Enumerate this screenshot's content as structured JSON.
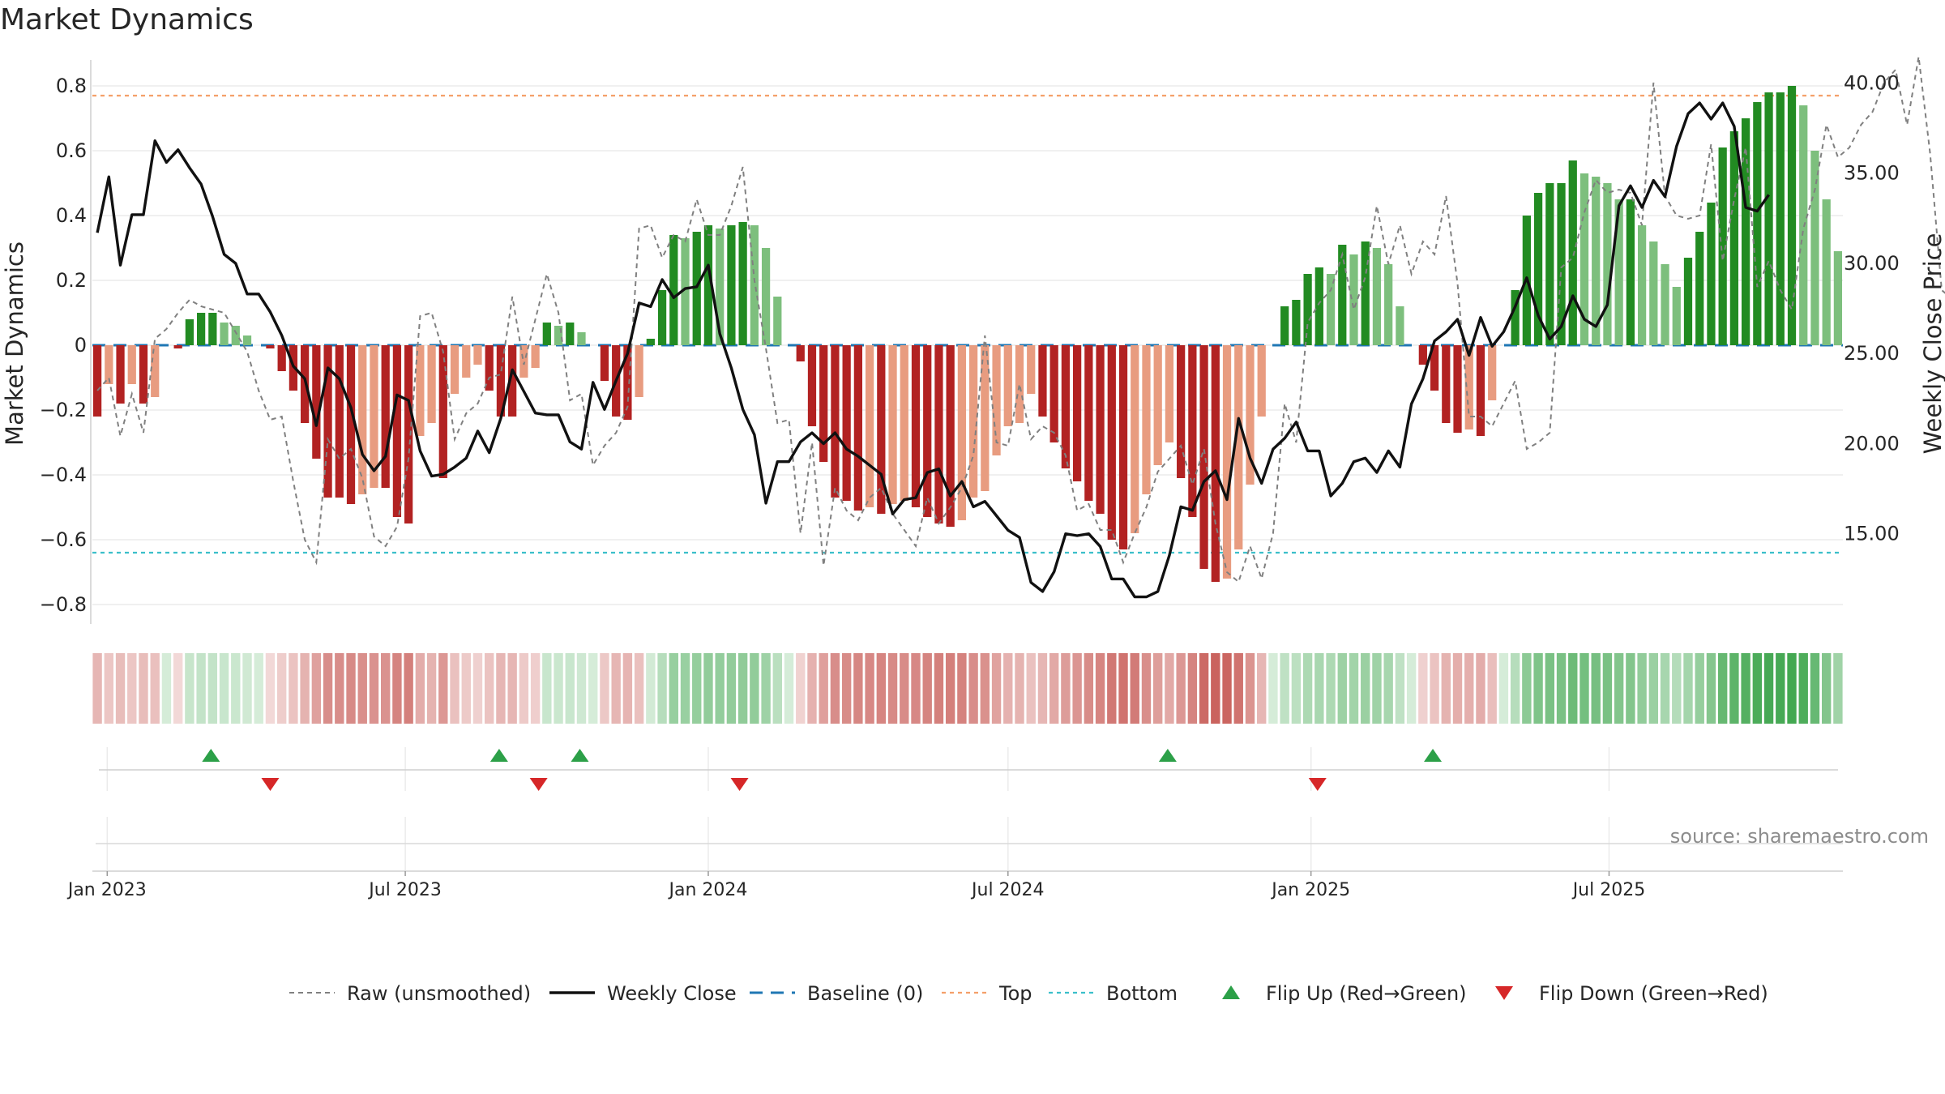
{
  "title": "Market Dynamics",
  "source": "source: sharemaestro.com",
  "colors": {
    "up_strong": "#228b22",
    "up_weak": "#7dbf7d",
    "down_strong": "#b22222",
    "down_weak": "#e89c80",
    "top_line": "#f4a06a",
    "bottom_line": "#3bbfca",
    "baseline": "#1f77b4",
    "raw": "#808080",
    "close": "#111111",
    "flip_up": "#2ca048",
    "flip_down": "#d62728"
  },
  "chart_data": {
    "type": "bar",
    "title": "Market Dynamics",
    "xlabel": "",
    "ylabel": "Market Dynamics",
    "ylabel_right": "Weekly Close Price",
    "ylim": [
      -0.86,
      0.87
    ],
    "ylim_right": [
      10.0,
      41.1
    ],
    "left_ticks": [
      0.8,
      0.6,
      0.4,
      0.2,
      0,
      -0.2,
      -0.4,
      -0.6,
      -0.8
    ],
    "left_tick_labels": [
      "0.8",
      "0.6",
      "0.4",
      "0.2",
      "0",
      "−0.2",
      "−0.4",
      "−0.6",
      "−0.8"
    ],
    "right_ticks": [
      40,
      35,
      30,
      25,
      20,
      15
    ],
    "right_tick_labels": [
      "40.00",
      "35.00",
      "30.00",
      "25.00",
      "20.00",
      "15.00"
    ],
    "top_level": 0.77,
    "bottom_level": -0.64,
    "x_start": "2022-12-26",
    "x_step_days": 7,
    "x_tick_labels": [
      {
        "label": "Jan 2023",
        "date": "2023-01-01"
      },
      {
        "label": "Jul 2023",
        "date": "2023-07-01"
      },
      {
        "label": "Jan 2024",
        "date": "2024-01-01"
      },
      {
        "label": "Jul 2024",
        "date": "2024-07-01"
      },
      {
        "label": "Jan 2025",
        "date": "2025-01-01"
      },
      {
        "label": "Jul 2025",
        "date": "2025-07-01"
      }
    ],
    "grid": true,
    "legend_position": "bottom-center",
    "series": [
      {
        "name": "Raw (unsmoothed)",
        "kind": "dashed-line",
        "values": [
          -0.14,
          -0.1,
          -0.28,
          -0.15,
          -0.27,
          0.02,
          0.05,
          0.1,
          0.14,
          0.12,
          0.11,
          0.1,
          0.04,
          -0.02,
          -0.14,
          -0.23,
          -0.22,
          -0.42,
          -0.6,
          -0.67,
          -0.29,
          -0.35,
          -0.32,
          -0.41,
          -0.59,
          -0.62,
          -0.56,
          -0.35,
          0.09,
          0.1,
          -0.02,
          -0.29,
          -0.21,
          -0.18,
          -0.1,
          -0.09,
          0.15,
          -0.06,
          0.08,
          0.22,
          0.1,
          -0.17,
          -0.15,
          -0.37,
          -0.31,
          -0.27,
          -0.19,
          0.36,
          0.37,
          0.27,
          0.34,
          0.32,
          0.45,
          0.34,
          0.34,
          0.43,
          0.55,
          0.2,
          -0.01,
          -0.24,
          -0.23,
          -0.58,
          -0.3,
          -0.68,
          -0.44,
          -0.51,
          -0.54,
          -0.47,
          -0.44,
          -0.52,
          -0.57,
          -0.62,
          -0.47,
          -0.55,
          -0.5,
          -0.44,
          -0.34,
          0.03,
          -0.3,
          -0.31,
          -0.12,
          -0.29,
          -0.25,
          -0.27,
          -0.34,
          -0.51,
          -0.49,
          -0.57,
          -0.57,
          -0.67,
          -0.58,
          -0.5,
          -0.39,
          -0.35,
          -0.31,
          -0.43,
          -0.32,
          -0.55,
          -0.7,
          -0.73,
          -0.62,
          -0.72,
          -0.58,
          -0.18,
          -0.3,
          0.07,
          0.13,
          0.17,
          0.28,
          0.11,
          0.21,
          0.43,
          0.25,
          0.37,
          0.22,
          0.32,
          0.28,
          0.46,
          0.19,
          -0.22,
          -0.22,
          -0.25,
          -0.18,
          -0.11,
          -0.32,
          -0.3,
          -0.27,
          0.24,
          0.27,
          0.41,
          0.51,
          0.47,
          0.48,
          0.47,
          0.37,
          0.81,
          0.46,
          0.4,
          0.39,
          0.4,
          0.62,
          0.26,
          0.45,
          0.61,
          0.18,
          0.26,
          0.17,
          0.11,
          0.36,
          0.48,
          0.68,
          0.58,
          0.61,
          0.68,
          0.72,
          0.81,
          0.85,
          0.68,
          0.89,
          0.59,
          0.17,
          0.14,
          0.2
        ]
      },
      {
        "name": "Weekly Close",
        "kind": "line",
        "values": [
          31.7,
          34.8,
          29.9,
          32.7,
          32.7,
          36.8,
          35.6,
          36.3,
          35.3,
          34.4,
          32.6,
          30.5,
          30.0,
          28.3,
          28.3,
          27.3,
          26.0,
          24.3,
          23.6,
          21.0,
          24.2,
          23.6,
          22.0,
          19.4,
          18.5,
          19.3,
          22.7,
          22.4,
          19.6,
          18.2,
          18.3,
          18.7,
          19.2,
          20.7,
          19.5,
          21.4,
          24.1,
          22.9,
          21.7,
          21.6,
          21.6,
          20.1,
          19.7,
          23.4,
          21.9,
          23.5,
          25.0,
          27.8,
          27.6,
          29.1,
          28.1,
          28.6,
          28.7,
          29.9,
          26.1,
          24.2,
          21.9,
          20.5,
          16.7,
          19.0,
          19.0,
          20.1,
          20.6,
          20.0,
          20.6,
          19.7,
          19.3,
          18.8,
          18.3,
          16.1,
          16.9,
          17.0,
          18.4,
          18.6,
          17.1,
          17.9,
          16.5,
          16.8,
          16.0,
          15.2,
          14.8,
          12.3,
          11.8,
          12.9,
          15.0,
          14.9,
          15.0,
          14.3,
          12.5,
          12.5,
          11.5,
          11.5,
          11.8,
          13.8,
          16.5,
          16.3,
          17.9,
          18.5,
          16.9,
          21.4,
          19.2,
          17.8,
          19.7,
          20.3,
          21.2,
          19.6,
          19.6,
          17.1,
          17.8,
          19.0,
          19.2,
          18.4,
          19.6,
          18.7,
          22.2,
          23.6,
          25.7,
          26.2,
          26.9,
          24.9,
          27.0,
          25.4,
          26.2,
          27.6,
          29.2,
          27.1,
          25.8,
          26.5,
          28.2,
          26.9,
          26.5,
          27.7,
          33.2,
          34.3,
          33.1,
          34.6,
          33.7,
          36.5,
          38.3,
          38.9,
          38.0,
          38.9,
          37.6,
          33.1,
          32.9,
          33.8
        ]
      },
      {
        "name": "Baseline (0)",
        "kind": "dashed-line",
        "value": 0
      },
      {
        "name": "Top",
        "kind": "dotted-line",
        "value": 0.77
      },
      {
        "name": "Bottom",
        "kind": "dotted-line",
        "value": -0.64
      },
      {
        "name": "Flip Up (Red→Green)",
        "kind": "marker",
        "dates": [
          "2023-03-05",
          "2023-08-27",
          "2023-10-15",
          "2024-10-06",
          "2025-03-16"
        ]
      },
      {
        "name": "Flip Down (Green→Red)",
        "kind": "marker",
        "dates": [
          "2023-04-10",
          "2023-09-20",
          "2024-01-20",
          "2025-01-05"
        ]
      }
    ],
    "bars": [
      -0.22,
      -0.12,
      -0.18,
      -0.12,
      -0.18,
      -0.16,
      0.0,
      -0.01,
      0.08,
      0.1,
      0.1,
      0.07,
      0.06,
      0.03,
      0.0,
      -0.01,
      -0.08,
      -0.14,
      -0.24,
      -0.35,
      -0.47,
      -0.47,
      -0.49,
      -0.46,
      -0.44,
      -0.44,
      -0.53,
      -0.55,
      -0.28,
      -0.24,
      -0.41,
      -0.15,
      -0.1,
      -0.06,
      -0.14,
      -0.22,
      -0.22,
      -0.1,
      -0.07,
      0.07,
      0.06,
      0.07,
      0.04,
      0.0,
      -0.11,
      -0.22,
      -0.23,
      -0.16,
      0.02,
      0.17,
      0.34,
      0.33,
      0.35,
      0.37,
      0.36,
      0.37,
      0.38,
      0.37,
      0.3,
      0.15,
      0.0,
      -0.05,
      -0.25,
      -0.36,
      -0.47,
      -0.48,
      -0.51,
      -0.5,
      -0.52,
      -0.49,
      -0.48,
      -0.5,
      -0.53,
      -0.55,
      -0.56,
      -0.54,
      -0.47,
      -0.45,
      -0.34,
      -0.25,
      -0.24,
      -0.15,
      -0.22,
      -0.3,
      -0.38,
      -0.42,
      -0.48,
      -0.52,
      -0.6,
      -0.63,
      -0.58,
      -0.46,
      -0.37,
      -0.3,
      -0.41,
      -0.53,
      -0.69,
      -0.73,
      -0.72,
      -0.63,
      -0.43,
      -0.22,
      0.0,
      0.12,
      0.14,
      0.22,
      0.24,
      0.22,
      0.31,
      0.28,
      0.32,
      0.3,
      0.25,
      0.12,
      0.0,
      -0.06,
      -0.14,
      -0.24,
      -0.27,
      -0.26,
      -0.28,
      -0.17,
      0.0,
      0.17,
      0.4,
      0.47,
      0.5,
      0.5,
      0.57,
      0.53,
      0.52,
      0.5,
      0.45,
      0.45,
      0.37,
      0.32,
      0.25,
      0.18,
      0.27,
      0.35,
      0.44,
      0.61,
      0.66,
      0.7,
      0.75,
      0.78,
      0.78,
      0.8,
      0.74,
      0.6,
      0.45,
      0.29
    ],
    "band": {
      "label": "",
      "basis": "bars"
    }
  }
}
